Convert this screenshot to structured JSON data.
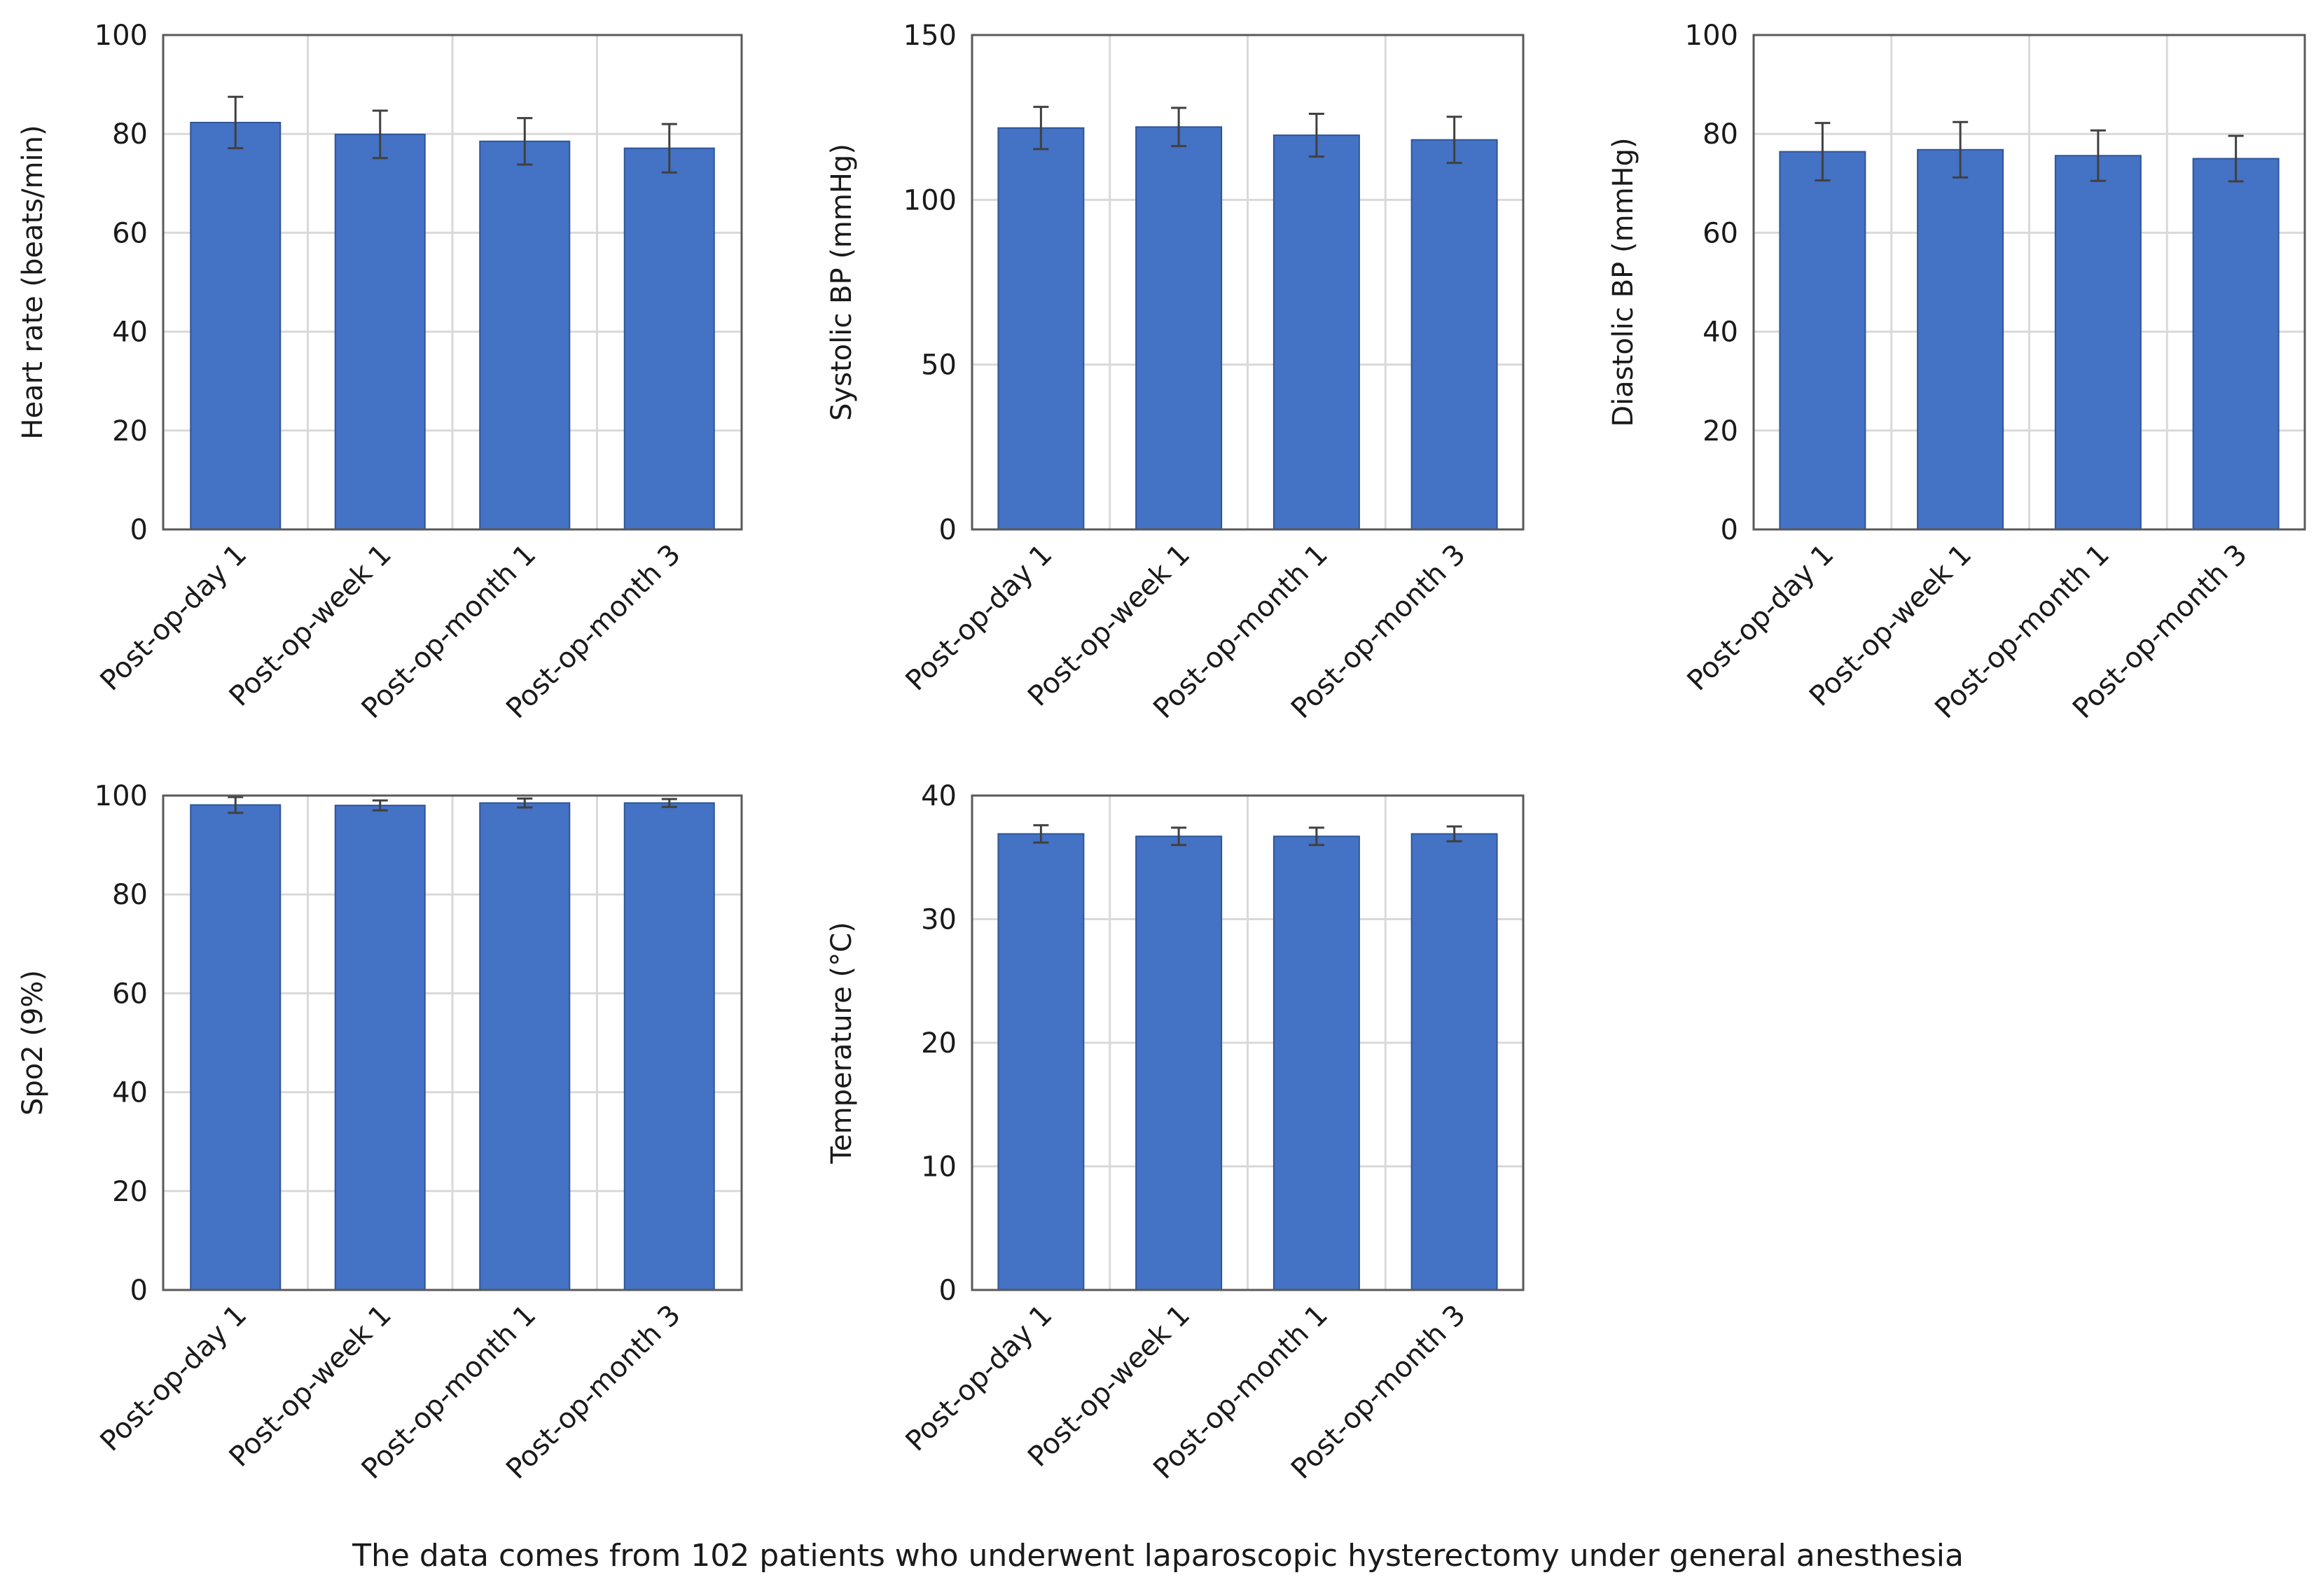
{
  "caption": "The data comes from 102 patients who underwent laparoscopic hysterectomy under general anesthesia",
  "colors": {
    "bar": "#4472C4",
    "bar_edge": "#2F5597",
    "grid": "#D9D9D9",
    "frame": "#595959",
    "error": "#404040"
  },
  "chart_data": [
    {
      "type": "bar",
      "categories": [
        "Post-op-day 1",
        "Post-op-week 1",
        "Post-op-month 1",
        "Post-op-month 3"
      ],
      "values": [
        82.3,
        79.9,
        78.5,
        77.1
      ],
      "errors": [
        5.2,
        4.8,
        4.7,
        4.9
      ],
      "ylabel": "Heart rate (beats/min)",
      "ylim": [
        0,
        100
      ],
      "yticks": [
        0,
        20,
        40,
        60,
        80,
        100
      ],
      "grid": true
    },
    {
      "type": "bar",
      "categories": [
        "Post-op-day 1",
        "Post-op-week 1",
        "Post-op-month 1",
        "Post-op-month 3"
      ],
      "values": [
        121.8,
        122.1,
        119.6,
        118.2
      ],
      "errors": [
        6.4,
        5.8,
        6.5,
        7.0
      ],
      "ylabel": "Systolic BP (mmHg)",
      "ylim": [
        0,
        150
      ],
      "yticks": [
        0,
        50,
        100,
        150
      ],
      "grid": true
    },
    {
      "type": "bar",
      "categories": [
        "Post-op-day 1",
        "Post-op-week 1",
        "Post-op-month 1",
        "Post-op-month 3"
      ],
      "values": [
        76.4,
        76.8,
        75.6,
        75.0
      ],
      "errors": [
        5.8,
        5.6,
        5.1,
        4.6
      ],
      "ylabel": "Diastolic BP (mmHg)",
      "ylim": [
        0,
        100
      ],
      "yticks": [
        0,
        20,
        40,
        60,
        80,
        100
      ],
      "grid": true
    },
    {
      "type": "bar",
      "categories": [
        "Post-op-day 1",
        "Post-op-week 1",
        "Post-op-month 1",
        "Post-op-month 3"
      ],
      "values": [
        98.1,
        98.0,
        98.5,
        98.5
      ],
      "errors": [
        1.6,
        1.0,
        0.9,
        0.8
      ],
      "ylabel": "Spo2 (9%)",
      "ylim": [
        0,
        100
      ],
      "yticks": [
        0,
        20,
        40,
        60,
        80,
        100
      ],
      "grid": true
    },
    {
      "type": "bar",
      "categories": [
        "Post-op-day 1",
        "Post-op-week 1",
        "Post-op-month 1",
        "Post-op-month 3"
      ],
      "values": [
        36.9,
        36.7,
        36.7,
        36.9
      ],
      "errors": [
        0.7,
        0.7,
        0.7,
        0.6
      ],
      "ylabel": "Temperature (°C)",
      "ylim": [
        0,
        40
      ],
      "yticks": [
        0,
        10,
        20,
        30,
        40
      ],
      "grid": true
    }
  ]
}
